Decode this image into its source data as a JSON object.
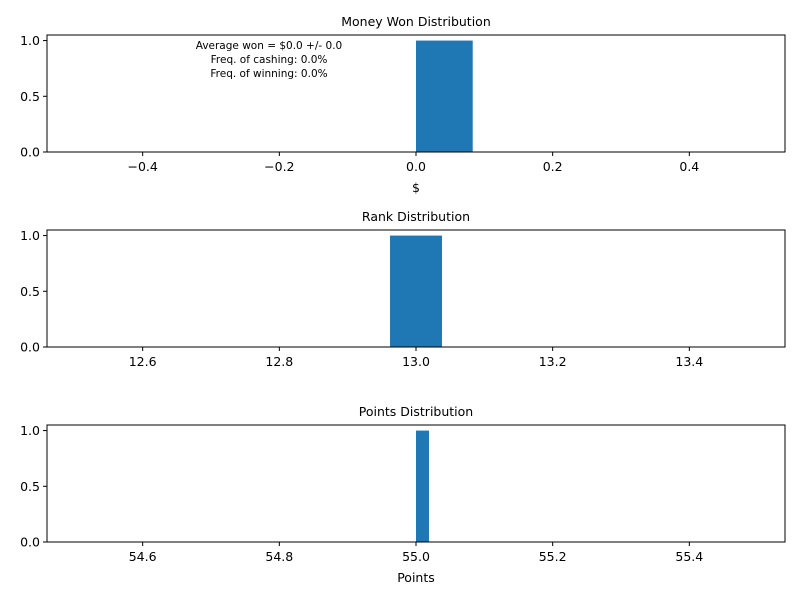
{
  "chart_data": [
    {
      "type": "bar",
      "title": "Money Won Distribution",
      "xlabel": "$",
      "ylabel": "",
      "xlim": [
        -0.54,
        0.54
      ],
      "ylim": [
        0,
        1.05
      ],
      "xticks": [
        "-0.4",
        "-0.2",
        "0.0",
        "0.2",
        "0.4"
      ],
      "yticks": [
        "0.0",
        "0.5",
        "1.0"
      ],
      "bars": [
        {
          "x0": 0.0,
          "x1": 0.083,
          "value": 1.0
        }
      ],
      "annotations": [
        "Average won = $0.0 +/- 0.0",
        "Freq. of cashing: 0.0%",
        "Freq. of winning: 0.0%"
      ]
    },
    {
      "type": "bar",
      "title": "Rank Distribution",
      "xlabel": "",
      "ylabel": "",
      "xlim": [
        12.46,
        13.54
      ],
      "ylim": [
        0,
        1.05
      ],
      "xticks": [
        "12.6",
        "12.8",
        "13.0",
        "13.2",
        "13.4"
      ],
      "yticks": [
        "0.0",
        "0.5",
        "1.0"
      ],
      "bars": [
        {
          "x0": 12.962,
          "x1": 13.038,
          "value": 1.0
        }
      ],
      "annotations": []
    },
    {
      "type": "bar",
      "title": "Points Distribution",
      "xlabel": "Points",
      "ylabel": "",
      "xlim": [
        54.46,
        55.54
      ],
      "ylim": [
        0,
        1.05
      ],
      "xticks": [
        "54.6",
        "54.8",
        "55.0",
        "55.2",
        "55.4"
      ],
      "yticks": [
        "0.0",
        "0.5",
        "1.0"
      ],
      "bars": [
        {
          "x0": 55.0,
          "x1": 55.019,
          "value": 1.0
        }
      ],
      "annotations": []
    }
  ],
  "colors": {
    "bar": "#1f77b4",
    "axis": "#000000",
    "background": "#ffffff"
  }
}
